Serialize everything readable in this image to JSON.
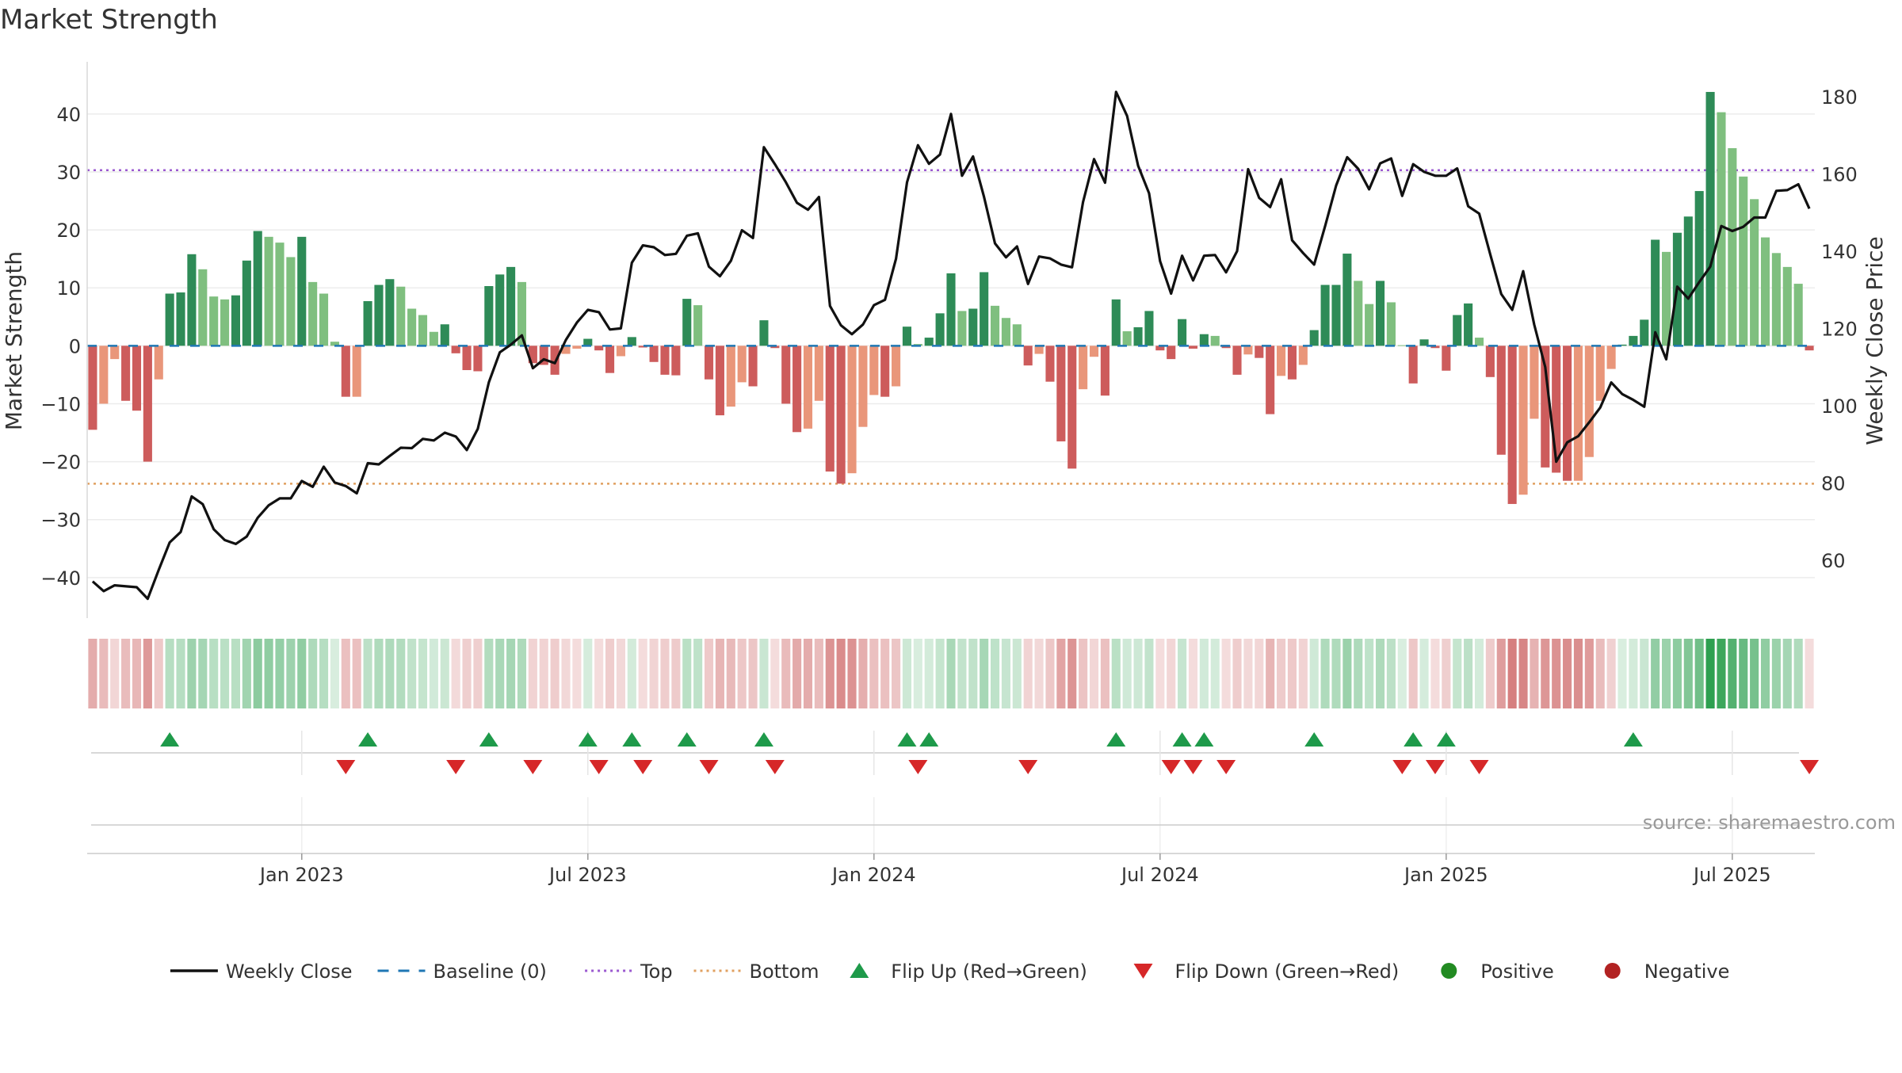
{
  "chart_data": {
    "type": "bar",
    "title": "Market Strength",
    "ylabel": "Market Strength",
    "y2label": "Weekly Close Price",
    "source": "source: sharemaestro.com",
    "ylim": [
      -47,
      49
    ],
    "y2lim": [
      45,
      189
    ],
    "y_ticks": [
      -40,
      -30,
      -20,
      -10,
      0,
      10,
      20,
      30,
      40
    ],
    "y_tick_labels": [
      "−40",
      "−30",
      "−20",
      "−10",
      "0",
      "10",
      "20",
      "30",
      "40"
    ],
    "y2_ticks": [
      60,
      80,
      100,
      120,
      140,
      160,
      180
    ],
    "x_ticks": [
      {
        "label": "Jan 2023",
        "week": 19
      },
      {
        "label": "Jul 2023",
        "week": 45
      },
      {
        "label": "Jan 2024",
        "week": 71
      },
      {
        "label": "Jul 2024",
        "week": 97
      },
      {
        "label": "Jan 2025",
        "week": 123
      },
      {
        "label": "Jul 2025",
        "week": 149
      }
    ],
    "top_threshold": 30.3,
    "bottom_threshold": -23.8,
    "legend_position": "bottom-center",
    "colors": {
      "pos_strong": "#2e8b57",
      "pos_light": "#7fbf7f",
      "neg_strong": "#cd5c5c",
      "neg_light": "#e9967a",
      "close_line": "#111111",
      "top_line": "#9b59d0",
      "bottom_line": "#e0a060",
      "baseline": "#1f77b4",
      "flip_up": "#1e9a4a",
      "flip_down": "#d62728",
      "positive_dot": "#228b22",
      "negative_dot": "#b22222"
    },
    "legend": [
      {
        "label": "Weekly Close",
        "marker": "line"
      },
      {
        "label": "Baseline (0)",
        "marker": "dash"
      },
      {
        "label": "Top",
        "marker": "dot-purple"
      },
      {
        "label": "Bottom",
        "marker": "dot-orange"
      },
      {
        "label": "Flip Up (Red→Green)",
        "marker": "triangle-up"
      },
      {
        "label": "Flip Down (Green→Red)",
        "marker": "triangle-down"
      },
      {
        "label": "Positive",
        "marker": "circle-green"
      },
      {
        "label": "Negative",
        "marker": "circle-red"
      }
    ],
    "strength": [
      -14.5,
      -10,
      -2.3,
      -9.5,
      -11.2,
      -20,
      -5.8,
      9,
      9.2,
      15.8,
      13.2,
      8.5,
      8,
      8.7,
      14.7,
      19.8,
      18.8,
      17.8,
      15.3,
      18.8,
      11,
      9,
      0.7,
      -8.8,
      -8.8,
      7.7,
      10.5,
      11.5,
      10.2,
      6.4,
      5.3,
      2.4,
      3.7,
      -1.3,
      -4.2,
      -4.4,
      10.3,
      12.3,
      13.6,
      11,
      -3,
      -3.3,
      -5,
      -1.4,
      -0.5,
      1.2,
      -0.8,
      -4.7,
      -1.8,
      1.5,
      -0.3,
      -2.8,
      -5,
      -5.1,
      8.1,
      7,
      -5.8,
      -12,
      -10.5,
      -6.3,
      -7,
      4.4,
      -0.4,
      -10,
      -14.9,
      -14.3,
      -9.5,
      -21.7,
      -23.8,
      -22,
      -14,
      -8.5,
      -8.8,
      -7,
      3.3,
      0.3,
      1.4,
      5.6,
      12.5,
      6,
      6.4,
      12.7,
      6.9,
      4.8,
      3.7,
      -3.4,
      -1.4,
      -6.2,
      -16.5,
      -21.2,
      -7.5,
      -1.9,
      -8.6,
      8,
      2.5,
      3.2,
      6,
      -0.8,
      -2.3,
      4.6,
      -0.5,
      2,
      1.7,
      -0.4,
      -5,
      -1.5,
      -2.1,
      -11.8,
      -5.2,
      -5.8,
      -3.3,
      2.7,
      10.5,
      10.5,
      15.9,
      11.2,
      7.2,
      11.2,
      7.5,
      0.1,
      -6.5,
      1.1,
      -0.4,
      -4.3,
      5.3,
      7.3,
      1.4,
      -5.4,
      -18.8,
      -27.3,
      -25.7,
      -12.6,
      -21,
      -21.9,
      -23.3,
      -23.3,
      -19.2,
      -9.5,
      -4,
      0.2,
      1.7,
      4.5,
      18.3,
      16.2,
      19.5,
      22.3,
      26.7,
      43.8,
      40.3,
      34.1,
      29.2,
      25.3,
      18.7,
      16,
      13.6,
      10.7,
      -0.8
    ],
    "close_series": [
      {
        "week": 0,
        "close": 54.5
      },
      {
        "week": 1,
        "close": 52
      },
      {
        "week": 2,
        "close": 53.5
      },
      {
        "week": 4,
        "close": 53
      },
      {
        "week": 5,
        "close": 50
      },
      {
        "week": 6,
        "close": 57.5
      },
      {
        "week": 7,
        "close": 64.6
      },
      {
        "week": 8,
        "close": 67.3
      },
      {
        "week": 9,
        "close": 76.5
      },
      {
        "week": 10,
        "close": 74.5
      },
      {
        "week": 11,
        "close": 68
      },
      {
        "week": 12,
        "close": 65.2
      },
      {
        "week": 13,
        "close": 64.2
      },
      {
        "week": 14,
        "close": 66.1
      },
      {
        "week": 15,
        "close": 71
      },
      {
        "week": 16,
        "close": 74.2
      },
      {
        "week": 17,
        "close": 76
      },
      {
        "week": 18,
        "close": 76
      },
      {
        "week": 19,
        "close": 80.5
      },
      {
        "week": 20,
        "close": 79
      },
      {
        "week": 21,
        "close": 84.2
      },
      {
        "week": 22,
        "close": 80.1
      },
      {
        "week": 23,
        "close": 79.2
      },
      {
        "week": 24,
        "close": 77.3
      },
      {
        "week": 25,
        "close": 85.1
      },
      {
        "week": 26,
        "close": 84.8
      },
      {
        "week": 27,
        "close": 87
      },
      {
        "week": 28,
        "close": 89.1
      },
      {
        "week": 29,
        "close": 89
      },
      {
        "week": 30,
        "close": 91.4
      },
      {
        "week": 31,
        "close": 91
      },
      {
        "week": 32,
        "close": 93
      },
      {
        "week": 33,
        "close": 92
      },
      {
        "week": 34,
        "close": 88.5
      },
      {
        "week": 35,
        "close": 94
      },
      {
        "week": 36,
        "close": 106
      },
      {
        "week": 37,
        "close": 113.8
      },
      {
        "week": 38,
        "close": 115.8
      },
      {
        "week": 39,
        "close": 118.2
      },
      {
        "week": 40,
        "close": 109.7
      },
      {
        "week": 41,
        "close": 112
      },
      {
        "week": 42,
        "close": 111
      },
      {
        "week": 43,
        "close": 117
      },
      {
        "week": 44,
        "close": 121.5
      },
      {
        "week": 45,
        "close": 124.8
      },
      {
        "week": 46,
        "close": 124.2
      },
      {
        "week": 47,
        "close": 119.7
      },
      {
        "week": 48,
        "close": 120
      },
      {
        "week": 49,
        "close": 137
      },
      {
        "week": 50,
        "close": 141.5
      },
      {
        "week": 51,
        "close": 141
      },
      {
        "week": 52,
        "close": 139
      },
      {
        "week": 53,
        "close": 139.3
      },
      {
        "week": 54,
        "close": 144
      },
      {
        "week": 55,
        "close": 144.6
      },
      {
        "week": 56,
        "close": 136
      },
      {
        "week": 57,
        "close": 133.5
      },
      {
        "week": 58,
        "close": 137.5
      },
      {
        "week": 59,
        "close": 145.4
      },
      {
        "week": 60,
        "close": 143.4
      },
      {
        "week": 61,
        "close": 166.9
      },
      {
        "week": 62,
        "close": 162.5
      },
      {
        "week": 63,
        "close": 157.8
      },
      {
        "week": 64,
        "close": 152.5
      },
      {
        "week": 65,
        "close": 150.7
      },
      {
        "week": 66,
        "close": 154
      },
      {
        "week": 67,
        "close": 125.8
      },
      {
        "week": 68,
        "close": 120.8
      },
      {
        "week": 69,
        "close": 118.5
      },
      {
        "week": 70,
        "close": 121
      },
      {
        "week": 71,
        "close": 126
      },
      {
        "week": 72,
        "close": 127.4
      },
      {
        "week": 73,
        "close": 138
      },
      {
        "week": 74,
        "close": 157.8
      },
      {
        "week": 75,
        "close": 167.4
      },
      {
        "week": 76,
        "close": 162.6
      },
      {
        "week": 77,
        "close": 165
      },
      {
        "week": 78,
        "close": 175.5
      },
      {
        "week": 79,
        "close": 159.5
      },
      {
        "week": 80,
        "close": 164.5
      },
      {
        "week": 81,
        "close": 154
      },
      {
        "week": 82,
        "close": 142
      },
      {
        "week": 83,
        "close": 138.4
      },
      {
        "week": 84,
        "close": 141.2
      },
      {
        "week": 85,
        "close": 131.5
      },
      {
        "week": 86,
        "close": 138.6
      },
      {
        "week": 87,
        "close": 138.1
      },
      {
        "week": 88,
        "close": 136.5
      },
      {
        "week": 89,
        "close": 135.8
      },
      {
        "week": 90,
        "close": 152.7
      },
      {
        "week": 91,
        "close": 163.8
      },
      {
        "week": 92,
        "close": 157.7
      },
      {
        "week": 93,
        "close": 181.2
      },
      {
        "week": 94,
        "close": 175
      },
      {
        "week": 95,
        "close": 162.1
      },
      {
        "week": 96,
        "close": 155
      },
      {
        "week": 97,
        "close": 137.4
      },
      {
        "week": 98,
        "close": 129
      },
      {
        "week": 99,
        "close": 138.8
      },
      {
        "week": 100,
        "close": 132.4
      },
      {
        "week": 101,
        "close": 138.8
      },
      {
        "week": 102,
        "close": 139
      },
      {
        "week": 103,
        "close": 134.5
      },
      {
        "week": 104,
        "close": 140
      },
      {
        "week": 105,
        "close": 161.2
      },
      {
        "week": 106,
        "close": 153.8
      },
      {
        "week": 107,
        "close": 151.4
      },
      {
        "week": 108,
        "close": 158.6
      },
      {
        "week": 109,
        "close": 142.8
      },
      {
        "week": 110,
        "close": 139.5
      },
      {
        "week": 111,
        "close": 136.5
      },
      {
        "week": 112,
        "close": 146.5
      },
      {
        "week": 113,
        "close": 157
      },
      {
        "week": 114,
        "close": 164.3
      },
      {
        "week": 115,
        "close": 161.3
      },
      {
        "week": 116,
        "close": 156
      },
      {
        "week": 117,
        "close": 162.7
      },
      {
        "week": 118,
        "close": 164
      },
      {
        "week": 119,
        "close": 154.3
      },
      {
        "week": 120,
        "close": 162.5
      },
      {
        "week": 121,
        "close": 160.5
      },
      {
        "week": 122,
        "close": 159.5
      },
      {
        "week": 123,
        "close": 159.5
      },
      {
        "week": 124,
        "close": 161.4
      },
      {
        "week": 125,
        "close": 151.6
      },
      {
        "week": 126,
        "close": 149.7
      },
      {
        "week": 127,
        "close": 139.2
      },
      {
        "week": 128,
        "close": 128.9
      },
      {
        "week": 129,
        "close": 124.8
      },
      {
        "week": 130,
        "close": 134.8
      },
      {
        "week": 131,
        "close": 121
      },
      {
        "week": 132,
        "close": 110
      },
      {
        "week": 133,
        "close": 85.5
      },
      {
        "week": 134,
        "close": 90.5
      },
      {
        "week": 135,
        "close": 92.1
      },
      {
        "week": 136,
        "close": 95.7
      },
      {
        "week": 137,
        "close": 99.5
      },
      {
        "week": 138,
        "close": 106
      },
      {
        "week": 139,
        "close": 103
      },
      {
        "week": 140,
        "close": 101.5
      },
      {
        "week": 141,
        "close": 99.7
      },
      {
        "week": 142,
        "close": 119
      },
      {
        "week": 143,
        "close": 112
      },
      {
        "week": 144,
        "close": 130.8
      },
      {
        "week": 145,
        "close": 127.7
      },
      {
        "week": 146,
        "close": 132
      },
      {
        "week": 147,
        "close": 136
      },
      {
        "week": 148,
        "close": 146.5
      },
      {
        "week": 149,
        "close": 145.2
      },
      {
        "week": 150,
        "close": 146.3
      },
      {
        "week": 151,
        "close": 148.7
      },
      {
        "week": 152,
        "close": 148.7
      },
      {
        "week": 153,
        "close": 155.6
      },
      {
        "week": 154,
        "close": 155.8
      },
      {
        "week": 155,
        "close": 157.3
      },
      {
        "week": 156,
        "close": 151
      }
    ],
    "flip_up_weeks": [
      7,
      25,
      36,
      45,
      49,
      54,
      61,
      74,
      76,
      93,
      99,
      101,
      111,
      120,
      123,
      140
    ],
    "flip_down_weeks": [
      23,
      33,
      40,
      46,
      50,
      56,
      62,
      75,
      85,
      98,
      100,
      103,
      119,
      122,
      126,
      156
    ]
  }
}
